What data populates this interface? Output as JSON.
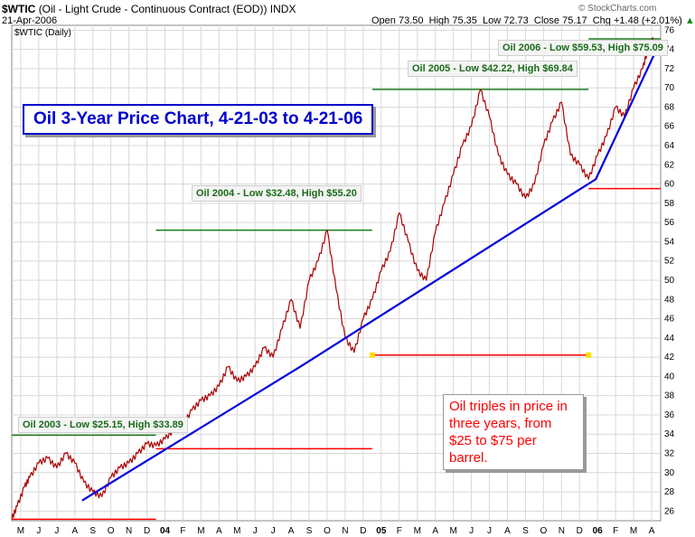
{
  "header": {
    "symbol": "$WTIC",
    "description": "(Oil - Light Crude - Continuous Contract (EOD))",
    "exchange": "INDX",
    "date": "21-Apr-2006",
    "brand": "© StockCharts.com",
    "series_label": "$WTIC (Daily)",
    "open_label": "Open",
    "open": "73.50",
    "high_label": "High",
    "high": "75.35",
    "low_label": "Low",
    "low": "72.73",
    "close_label": "Close",
    "close": "75.17",
    "chg_label": "Chg",
    "chg": "+1.48 (+2.01%)",
    "chg_arrow": "▲"
  },
  "annotations": {
    "title": "Oil 3-Year Price Chart,  4-21-03 to 4-21-06",
    "note": "Oil triples in price in three years, from $25 to $75 per barrel.",
    "oil_2003": "Oil 2003 - Low $25.15, High $33.89",
    "oil_2004": "Oil 2004 - Low $32.48, High $55.20",
    "oil_2005": "Oil 2005 - Low $42.22, High $69.84",
    "oil_2006": "Oil 2006 - Low $59.53, High $75.09"
  },
  "colors": {
    "price": "#333333",
    "price_red": "#aa0000",
    "trend": "#0000dd",
    "high_line": "#1a7a1a",
    "low_line": "#ff0000",
    "grid": "#d8d8d8",
    "marker": "#ffdd00"
  },
  "chart_data": {
    "type": "line",
    "y_ticks": [
      26,
      28,
      30,
      32,
      34,
      36,
      38,
      40,
      42,
      44,
      46,
      48,
      50,
      52,
      54,
      56,
      58,
      60,
      62,
      64,
      66,
      68,
      70,
      72,
      74,
      76
    ],
    "ylim": [
      25,
      76.5
    ],
    "xlim": [
      0,
      36
    ],
    "x_tick_labels": [
      "M",
      "J",
      "J",
      "A",
      "S",
      "O",
      "N",
      "D",
      "04",
      "F",
      "M",
      "A",
      "M",
      "J",
      "J",
      "A",
      "S",
      "O",
      "N",
      "D",
      "05",
      "F",
      "M",
      "A",
      "M",
      "J",
      "J",
      "A",
      "S",
      "O",
      "N",
      "D",
      "06",
      "F",
      "M",
      "A"
    ],
    "grid": true,
    "series": [
      {
        "values_x": [
          0,
          0.3,
          0.7,
          1,
          1.5,
          2,
          2.5,
          3,
          3.5,
          4,
          4.5,
          5,
          5.5,
          6,
          6.5,
          7,
          7.5,
          8,
          8.5,
          9,
          9.5,
          10,
          10.5,
          11,
          11.5,
          12,
          12.5,
          13,
          13.5,
          14,
          14.5,
          15,
          15.5,
          16,
          16.5,
          17,
          17.5,
          18,
          18.5,
          19,
          19.5,
          20,
          20.5,
          21,
          21.5,
          22,
          22.5,
          23,
          23.5,
          24,
          24.5,
          25,
          25.5,
          26,
          26.5,
          27,
          27.5,
          28,
          28.5,
          29,
          29.5,
          30,
          30.5,
          31,
          31.5,
          32,
          32.5,
          33,
          33.5,
          34,
          34.5,
          35,
          35.3,
          35.6
        ],
        "values": [
          25.2,
          26.5,
          28.5,
          29.5,
          31,
          31.5,
          30.5,
          32,
          31,
          29,
          28,
          27.5,
          29.5,
          30.5,
          31,
          32,
          33,
          32.8,
          33.5,
          34.5,
          35,
          36.5,
          37.5,
          38,
          39,
          41,
          39.5,
          40,
          41,
          43,
          42,
          45,
          48,
          45,
          50,
          52,
          55.2,
          49,
          44,
          42.5,
          46,
          48,
          51,
          53,
          57,
          54,
          51,
          50,
          55,
          58,
          61,
          64,
          66,
          69.8,
          67,
          63,
          61,
          60,
          58.5,
          60,
          64,
          66.5,
          68.5,
          63,
          62,
          60.5,
          63,
          65,
          68,
          67,
          70,
          72,
          74,
          75.1
        ]
      }
    ],
    "trendline": {
      "x": [
        3.9,
        16,
        32.4,
        35.9
      ],
      "y": [
        27.1,
        41,
        60.5,
        74.5
      ]
    },
    "high_lines": [
      {
        "year": "2003",
        "x1": 0,
        "x2": 8,
        "y": 33.89
      },
      {
        "year": "2004",
        "x1": 8,
        "x2": 20,
        "y": 55.2
      },
      {
        "year": "2005",
        "x1": 20,
        "x2": 32,
        "y": 69.84
      },
      {
        "year": "2006",
        "x1": 32,
        "x2": 36,
        "y": 75.09
      }
    ],
    "low_lines": [
      {
        "year": "2003",
        "x1": 0,
        "x2": 8,
        "y": 25.15
      },
      {
        "year": "2004",
        "x1": 8,
        "x2": 20,
        "y": 32.48
      },
      {
        "year": "2005",
        "x1": 20,
        "x2": 32,
        "y": 42.22
      },
      {
        "year": "2006",
        "x1": 32,
        "x2": 36,
        "y": 59.53
      }
    ],
    "markers": [
      {
        "x": 20,
        "y": 42.22
      },
      {
        "x": 32,
        "y": 42.22
      }
    ]
  }
}
